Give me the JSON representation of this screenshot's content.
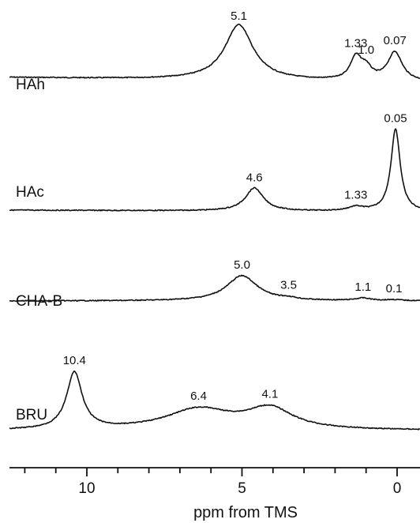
{
  "chart_data": {
    "type": "line",
    "xlabel": "ppm from TMS",
    "x_reversed": true,
    "xlim": [
      13.3,
      -0.9
    ],
    "major_ticks": [
      10,
      5,
      0
    ],
    "minor_tick_step": 1,
    "grid": false,
    "series": [
      {
        "name": "HAh",
        "peaks": [
          {
            "ppm": 5.1,
            "height": 1.0,
            "width": 0.55,
            "label": "5.1"
          },
          {
            "ppm": 1.33,
            "height": 0.4,
            "width": 0.22,
            "label": "1.33"
          },
          {
            "ppm": 1.0,
            "height": 0.2,
            "width": 0.22,
            "label": "1.0"
          },
          {
            "ppm": 0.07,
            "height": 0.52,
            "width": 0.28,
            "label": "0.07"
          }
        ]
      },
      {
        "name": "HAc",
        "peaks": [
          {
            "ppm": 4.6,
            "height": 0.28,
            "width": 0.35,
            "label": "4.6"
          },
          {
            "ppm": 1.33,
            "height": 0.05,
            "width": 0.3,
            "label": "1.33"
          },
          {
            "ppm": 0.05,
            "height": 1.0,
            "width": 0.18,
            "label": "0.05"
          }
        ]
      },
      {
        "name": "CHA-B",
        "peaks": [
          {
            "ppm": 5.0,
            "height": 1.0,
            "width": 0.6,
            "label": "5.0"
          },
          {
            "ppm": 3.5,
            "height": 0.06,
            "width": 0.3,
            "label": "3.5"
          },
          {
            "ppm": 1.1,
            "height": 0.1,
            "width": 0.3,
            "label": "1.1"
          },
          {
            "ppm": 0.1,
            "height": 0.04,
            "width": 0.3,
            "label": "0.1"
          }
        ]
      },
      {
        "name": "BRU",
        "peaks": [
          {
            "ppm": 10.4,
            "height": 1.0,
            "width": 0.3,
            "label": "10.4"
          },
          {
            "ppm": 6.4,
            "height": 0.36,
            "width": 1.3,
            "label": "6.4"
          },
          {
            "ppm": 4.1,
            "height": 0.36,
            "width": 0.9,
            "label": "4.1"
          }
        ]
      }
    ]
  }
}
